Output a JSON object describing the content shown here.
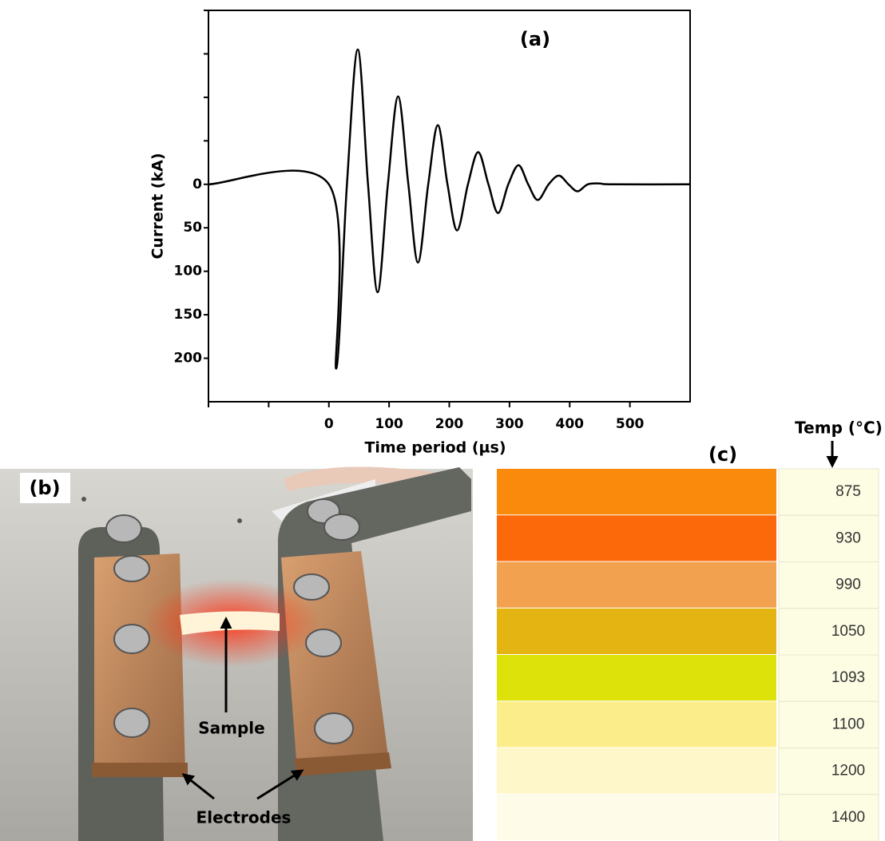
{
  "chart_data": {
    "type": "line",
    "panel_label": "(a)",
    "xlabel": "Time period (µs)",
    "ylabel": "Current (kA)",
    "x": [
      -200,
      0,
      12,
      30,
      48,
      65,
      81,
      98,
      115,
      132,
      148,
      165,
      181,
      197,
      213,
      231,
      248,
      265,
      281,
      298,
      315,
      331,
      347,
      365,
      382,
      398,
      413,
      430,
      450,
      470,
      600
    ],
    "values": [
      0,
      0,
      212,
      0,
      -155,
      0,
      124,
      0,
      -101,
      0,
      90,
      0,
      -68,
      0,
      53,
      0,
      -37,
      0,
      33,
      0,
      -22,
      0,
      18,
      0,
      -10,
      0,
      8,
      0,
      -1,
      0,
      0
    ],
    "color": "#000000",
    "xlim": [
      -200,
      600
    ],
    "xticks": [
      0,
      100,
      200,
      300,
      400,
      500
    ],
    "xticks_unlabeled": [
      -200,
      -100
    ],
    "ylim": [
      250,
      -200
    ],
    "yticks": [
      0,
      50,
      100,
      150,
      200
    ],
    "yticks_unlabeled": [
      -50,
      -100,
      -150,
      -200
    ]
  },
  "photo": {
    "label": "(b)",
    "sample": "Sample",
    "electrodes": "Electrodes"
  },
  "table": {
    "label": "(c)",
    "header": "Temp (°C)",
    "rows": [
      {
        "color": "#f98a0c",
        "temp": 875
      },
      {
        "color": "#fc690b",
        "temp": 930
      },
      {
        "color": "#f2a24f",
        "temp": 990
      },
      {
        "color": "#e3b412",
        "temp": 1050
      },
      {
        "color": "#dde20b",
        "temp": 1093
      },
      {
        "color": "#fced8b",
        "temp": 1100
      },
      {
        "color": "#fdf7c9",
        "temp": 1200
      },
      {
        "color": "#fefbe8",
        "temp": 1400
      }
    ]
  }
}
